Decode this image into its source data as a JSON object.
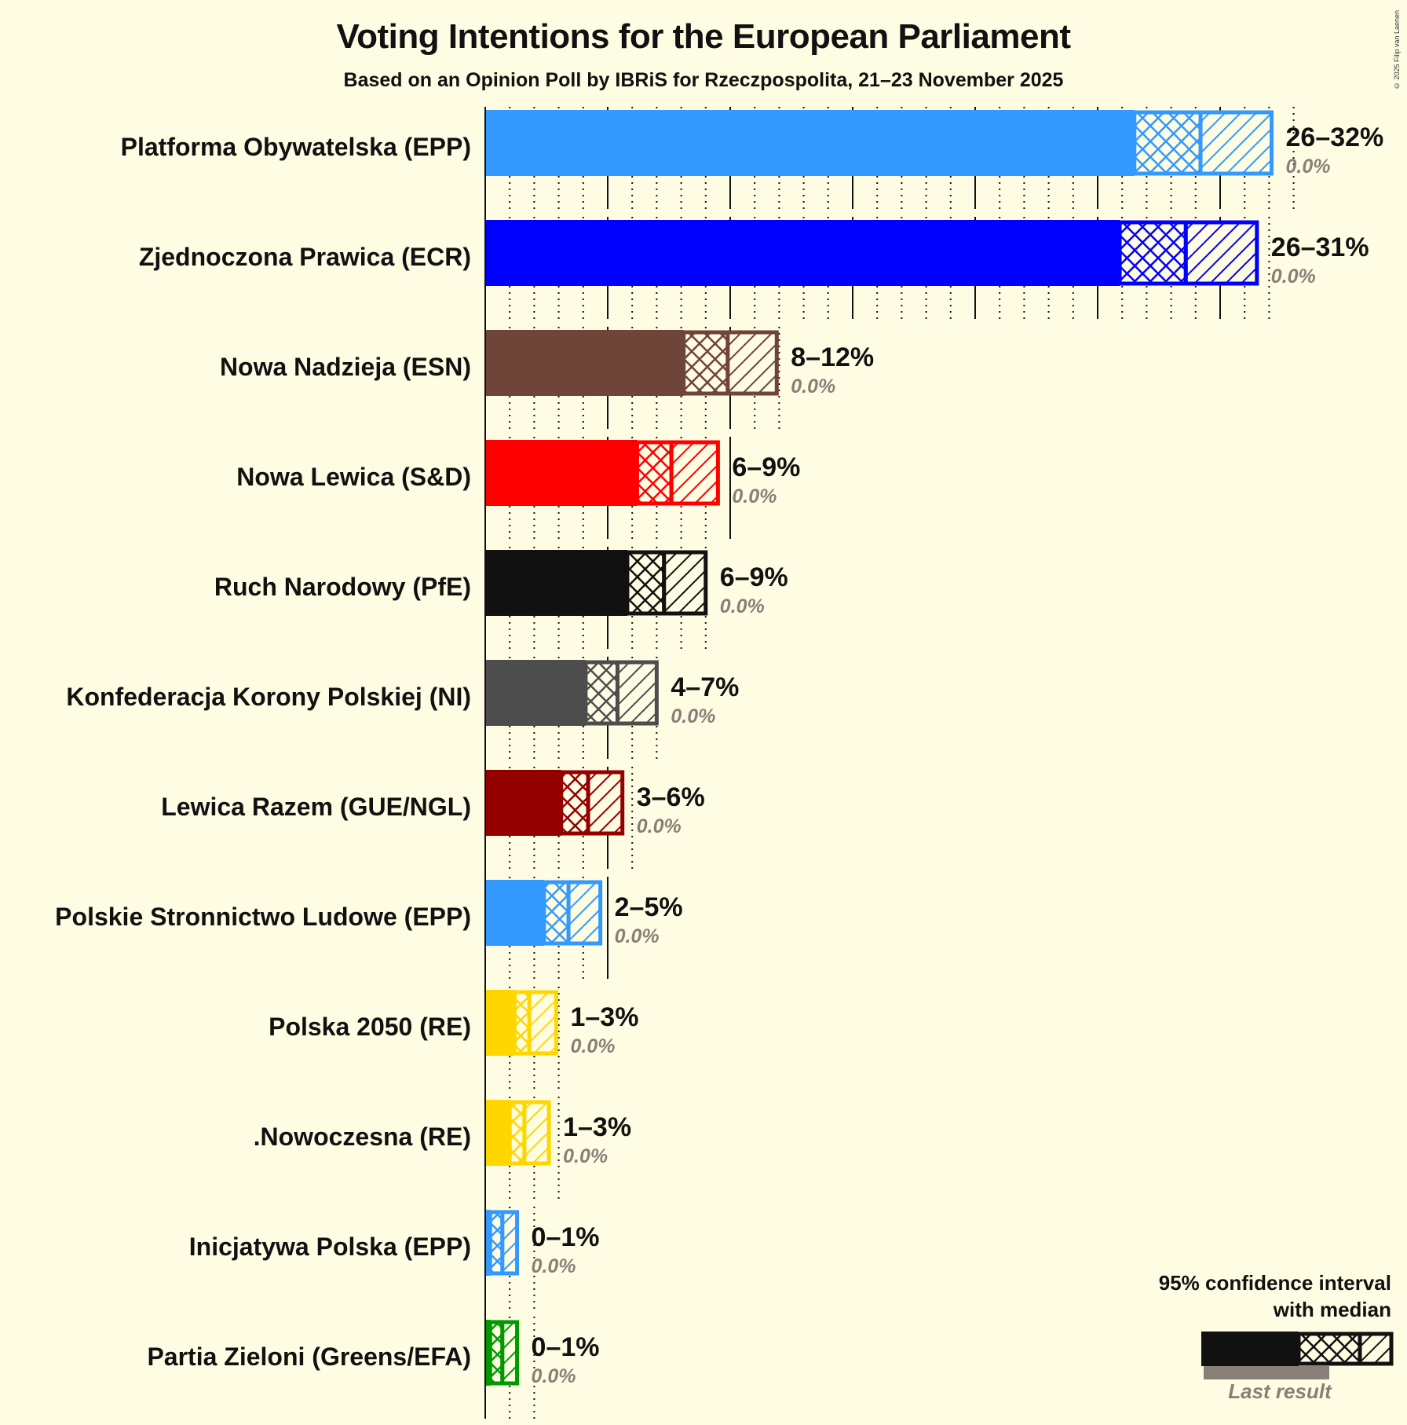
{
  "header": {
    "title": "Voting Intentions for the European Parliament",
    "subtitle": "Based on an Opinion Poll by IBRiS for Rzeczpospolita, 21–23 November 2025",
    "copyright": "© 2025 Filip van Laenen"
  },
  "legend": {
    "title_line1": "95% confidence interval",
    "title_line2": "with median",
    "last_result": "Last result"
  },
  "chart_data": {
    "type": "bar",
    "orientation": "horizontal",
    "title": "Voting Intentions for the European Parliament",
    "subtitle": "Based on an Opinion Poll by IBRiS for Rzeczpospolita, 21–23 November 2025",
    "xlabel": "",
    "ylabel": "",
    "xlim": [
      0,
      33
    ],
    "grid": {
      "major_every": 5,
      "minor_every": 1
    },
    "legend_position": "bottom-right",
    "categories": [
      "Platforma Obywatelska (EPP)",
      "Zjednoczona Prawica (ECR)",
      "Nowa Nadzieja (ESN)",
      "Nowa Lewica (S&D)",
      "Ruch Narodowy (PfE)",
      "Konfederacja Korony Polskiej (NI)",
      "Lewica Razem (GUE/NGL)",
      "Polskie Stronnictwo Ludowe (EPP)",
      "Polska 2050 (RE)",
      ".Nowoczesna (RE)",
      "Inicjatywa Polska (EPP)",
      "Partia Zieloni (Greens/EFA)"
    ],
    "series": [
      {
        "name": "CI lower bound (%)",
        "values": [
          26.5,
          25.9,
          8.1,
          6.2,
          5.8,
          4.1,
          3.1,
          2.4,
          1.2,
          1.0,
          0.2,
          0.2
        ]
      },
      {
        "name": "Median (%)",
        "values": [
          29.2,
          28.6,
          9.9,
          7.6,
          7.3,
          5.4,
          4.2,
          3.4,
          1.8,
          1.6,
          0.7,
          0.7
        ]
      },
      {
        "name": "CI upper bound (%)",
        "values": [
          32.1,
          31.5,
          11.9,
          9.5,
          9.0,
          7.0,
          5.6,
          4.7,
          2.9,
          2.6,
          1.3,
          1.3
        ]
      },
      {
        "name": "Last result (%)",
        "values": [
          0.0,
          0.0,
          0.0,
          0.0,
          0.0,
          0.0,
          0.0,
          0.0,
          0.0,
          0.0,
          0.0,
          0.0
        ]
      }
    ],
    "range_labels": [
      "26–32%",
      "26–31%",
      "8–12%",
      "6–9%",
      "6–9%",
      "4–7%",
      "3–6%",
      "2–5%",
      "1–3%",
      "1–3%",
      "0–1%",
      "0–1%"
    ],
    "last_result_labels": [
      "0.0%",
      "0.0%",
      "0.0%",
      "0.0%",
      "0.0%",
      "0.0%",
      "0.0%",
      "0.0%",
      "0.0%",
      "0.0%",
      "0.0%",
      "0.0%"
    ],
    "colors": [
      "#3399ff",
      "#0000ff",
      "#6f4439",
      "#ff0000",
      "#111111",
      "#4d4d4d",
      "#940000",
      "#3399ff",
      "#ffd700",
      "#ffd700",
      "#3399ff",
      "#009900"
    ]
  },
  "theme": {
    "background": "#fffce4",
    "text": "#111111",
    "muted": "#888076",
    "last_result_bar": "#888076"
  }
}
